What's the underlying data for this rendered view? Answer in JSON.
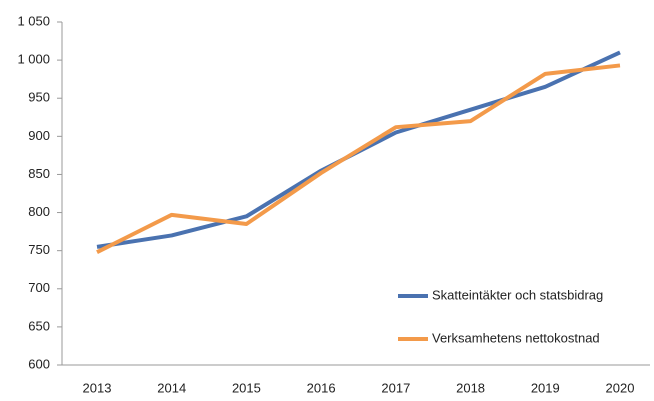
{
  "chart_data": {
    "type": "line",
    "categories": [
      "2013",
      "2014",
      "2015",
      "2016",
      "2017",
      "2018",
      "2019",
      "2020"
    ],
    "series": [
      {
        "name": "Skatteintäkter och statsbidrag",
        "color": "#4a72b0",
        "values": [
          755,
          770,
          795,
          855,
          905,
          935,
          965,
          1010
        ]
      },
      {
        "name": "Verksamhetens nettokostnad",
        "color": "#f39a4a",
        "values": [
          748,
          797,
          785,
          852,
          912,
          920,
          982,
          993
        ]
      }
    ],
    "ylim": [
      600,
      1050
    ],
    "yticks": [
      600,
      650,
      700,
      750,
      800,
      850,
      900,
      950,
      {
        "value": 1000,
        "label": "1 000"
      },
      {
        "value": 1050,
        "label": "1 050"
      }
    ],
    "grid": false,
    "legend": "lower-right"
  }
}
